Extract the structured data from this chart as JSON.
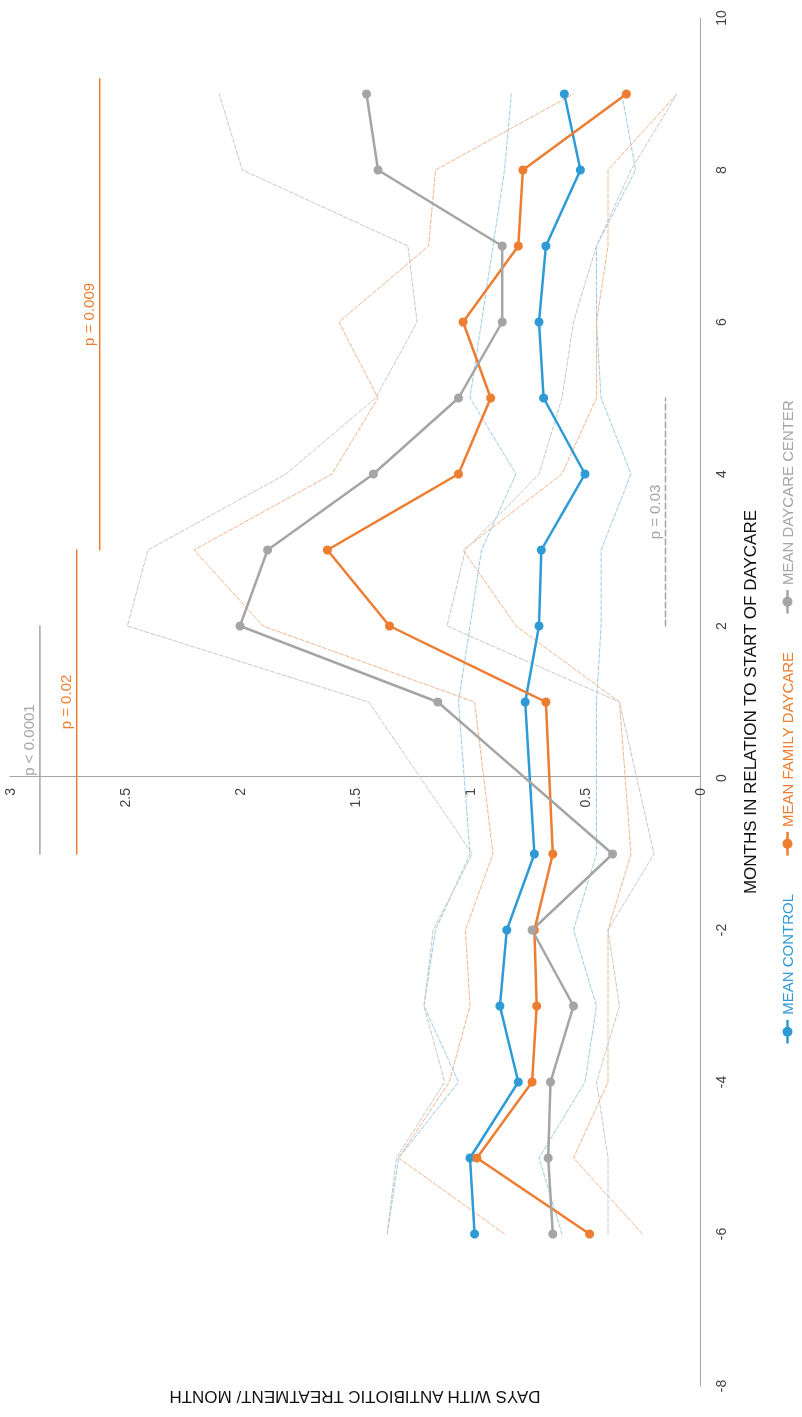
{
  "chart_data": {
    "type": "line",
    "xlabel": "DAYS WITH ANTIBIOTIC TREATMENT/ MONTH",
    "ylabel": "MONTHS IN RELATION TO START OF DAYCARE",
    "series": [
      {
        "name": "MEAN CONTROL",
        "color": "#2e9bd6",
        "x": [
          0.98,
          1.0,
          0.79,
          0.87,
          0.84,
          0.72,
          0.76,
          0.7,
          0.69,
          0.5,
          0.68,
          0.7,
          0.67,
          0.52,
          0.59
        ],
        "values": [
          -6,
          -5,
          -4,
          -3,
          -2,
          -1,
          1,
          2,
          3,
          4,
          5,
          6,
          7,
          8,
          9
        ]
      },
      {
        "name": "MEAN FAMILY DAYCARE",
        "color": "#ed7d31",
        "x": [
          0.48,
          0.97,
          0.73,
          0.71,
          0.72,
          0.64,
          0.67,
          1.35,
          1.62,
          1.05,
          0.91,
          1.03,
          0.79,
          0.77,
          0.32
        ],
        "values": [
          -6,
          -5,
          -4,
          -3,
          -2,
          -1,
          1,
          2,
          3,
          4,
          5,
          6,
          7,
          8,
          9
        ]
      },
      {
        "name": "MEAN DAYCARE CENTER",
        "color": "#a5a5a5",
        "x": [
          0.64,
          0.66,
          0.65,
          0.55,
          0.73,
          0.38,
          1.14,
          2.0,
          1.88,
          1.42,
          1.05,
          0.86,
          0.86,
          1.4,
          1.45
        ],
        "values": [
          -6,
          -5,
          -4,
          -3,
          -2,
          -1,
          1,
          2,
          3,
          4,
          5,
          6,
          7,
          8,
          9
        ]
      },
      {
        "color": "#9fcbe6",
        "marker": "none",
        "line_style": "dashed",
        "x": [
          0.6,
          0.7,
          0.5,
          0.45,
          0.55,
          0.45,
          0.45,
          0.43,
          0.43,
          0.3,
          0.43,
          0.45,
          0.45,
          0.28,
          0.34
        ],
        "values": [
          -6,
          -5,
          -4,
          -3,
          -2,
          -1,
          1,
          2,
          3,
          4,
          5,
          6,
          7,
          8,
          9
        ]
      },
      {
        "color": "#9fcbe6",
        "marker": "none",
        "line_style": "dashed",
        "x": [
          1.36,
          1.31,
          1.05,
          1.2,
          1.15,
          1.0,
          1.05,
          1.0,
          0.95,
          0.8,
          1.0,
          0.95,
          0.9,
          0.85,
          0.82
        ],
        "values": [
          -6,
          -5,
          -4,
          -3,
          -2,
          -1,
          1,
          2,
          3,
          4,
          5,
          6,
          7,
          8,
          9
        ]
      },
      {
        "color": "#f2b58c",
        "marker": "none",
        "line_style": "dashed",
        "x": [
          0.25,
          0.55,
          0.4,
          0.4,
          0.4,
          0.3,
          0.35,
          0.8,
          1.03,
          0.6,
          0.45,
          0.45,
          0.4,
          0.4,
          0.1
        ],
        "values": [
          -6,
          -5,
          -4,
          -3,
          -2,
          -1,
          1,
          2,
          3,
          4,
          5,
          6,
          7,
          8,
          9
        ]
      },
      {
        "color": "#f2b58c",
        "marker": "none",
        "line_style": "dashed",
        "x": [
          0.85,
          1.31,
          1.09,
          1.0,
          1.02,
          0.9,
          0.98,
          1.9,
          2.2,
          1.6,
          1.4,
          1.57,
          1.18,
          1.15,
          0.55
        ],
        "values": [
          -6,
          -5,
          -4,
          -3,
          -2,
          -1,
          1,
          2,
          3,
          4,
          5,
          6,
          7,
          8,
          9
        ]
      },
      {
        "color": "#c8c8c8",
        "marker": "none",
        "line_style": "dashed",
        "x": [
          0.4,
          0.4,
          0.45,
          0.35,
          0.4,
          0.2,
          0.35,
          1.1,
          1.02,
          0.7,
          0.6,
          0.55,
          0.45,
          0.3,
          0.1
        ],
        "values": [
          -6,
          -5,
          -4,
          -3,
          -2,
          -1,
          1,
          2,
          3,
          4,
          5,
          6,
          7,
          8,
          9
        ]
      },
      {
        "color": "#c8c8c8",
        "marker": "none",
        "line_style": "dashed",
        "x": [
          1.36,
          1.32,
          1.11,
          1.2,
          1.16,
          0.99,
          1.44,
          2.49,
          2.4,
          1.8,
          1.41,
          1.23,
          1.27,
          1.99,
          2.09
        ],
        "values": [
          -6,
          -5,
          -4,
          -3,
          -2,
          -1,
          1,
          2,
          3,
          4,
          5,
          6,
          7,
          8,
          9
        ]
      },
      {
        "name": "p < 0.0001",
        "color": "#a5a5a5",
        "marker": "none",
        "x": [
          2.87,
          2.87
        ],
        "values": [
          -1,
          2
        ]
      },
      {
        "name": "p = 0.02",
        "color": "#ed7d31",
        "marker": "none",
        "x": [
          2.71,
          2.71
        ],
        "values": [
          -1,
          3
        ]
      },
      {
        "name": "p = 0.009",
        "color": "#ed7d31",
        "marker": "none",
        "x": [
          2.61,
          2.61
        ],
        "values": [
          3,
          9.2
        ]
      },
      {
        "name": "p = 0.03",
        "color": "#a5a5a5",
        "marker": "none",
        "line_style": "dashed",
        "x": [
          0.15,
          0.15
        ],
        "values": [
          2,
          5
        ]
      }
    ],
    "xlim": [
      3,
      0
    ],
    "xticks": [
      0,
      0.5,
      1,
      1.5,
      2,
      2.5,
      3
    ],
    "ylim": [
      -8,
      10
    ],
    "yticks": [
      -8,
      -6,
      -4,
      -2,
      0,
      2,
      4,
      6,
      8,
      10
    ],
    "grid": false,
    "legend": "right",
    "marker": "circle",
    "line_style": "solid"
  }
}
